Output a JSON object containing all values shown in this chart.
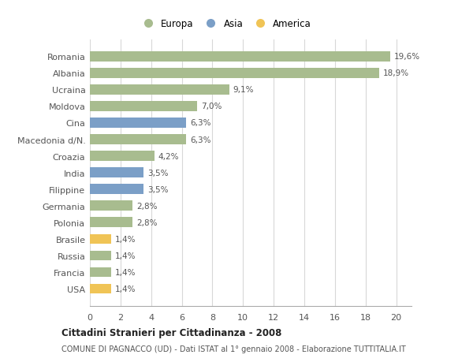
{
  "categories": [
    "Romania",
    "Albania",
    "Ucraina",
    "Moldova",
    "Cina",
    "Macedonia d/N.",
    "Croazia",
    "India",
    "Filippine",
    "Germania",
    "Polonia",
    "Brasile",
    "Russia",
    "Francia",
    "USA"
  ],
  "values": [
    19.6,
    18.9,
    9.1,
    7.0,
    6.3,
    6.3,
    4.2,
    3.5,
    3.5,
    2.8,
    2.8,
    1.4,
    1.4,
    1.4,
    1.4
  ],
  "continents": [
    "Europa",
    "Europa",
    "Europa",
    "Europa",
    "Asia",
    "Europa",
    "Europa",
    "Asia",
    "Asia",
    "Europa",
    "Europa",
    "America",
    "Europa",
    "Europa",
    "America"
  ],
  "colors": {
    "Europa": "#a8bc8f",
    "Asia": "#7b9fc7",
    "America": "#f0c456"
  },
  "labels": [
    "19,6%",
    "18,9%",
    "9,1%",
    "7,0%",
    "6,3%",
    "6,3%",
    "4,2%",
    "3,5%",
    "3,5%",
    "2,8%",
    "2,8%",
    "1,4%",
    "1,4%",
    "1,4%",
    "1,4%"
  ],
  "title": "Cittadini Stranieri per Cittadinanza - 2008",
  "subtitle": "COMUNE DI PAGNACCO (UD) - Dati ISTAT al 1° gennaio 2008 - Elaborazione TUTTITALIA.IT",
  "xlim": [
    0,
    21
  ],
  "xticks": [
    0,
    2,
    4,
    6,
    8,
    10,
    12,
    14,
    16,
    18,
    20
  ],
  "legend_labels": [
    "Europa",
    "Asia",
    "America"
  ],
  "background_color": "#ffffff",
  "plot_bg_color": "#ffffff",
  "grid_color": "#d8d8d8",
  "bar_height": 0.6
}
